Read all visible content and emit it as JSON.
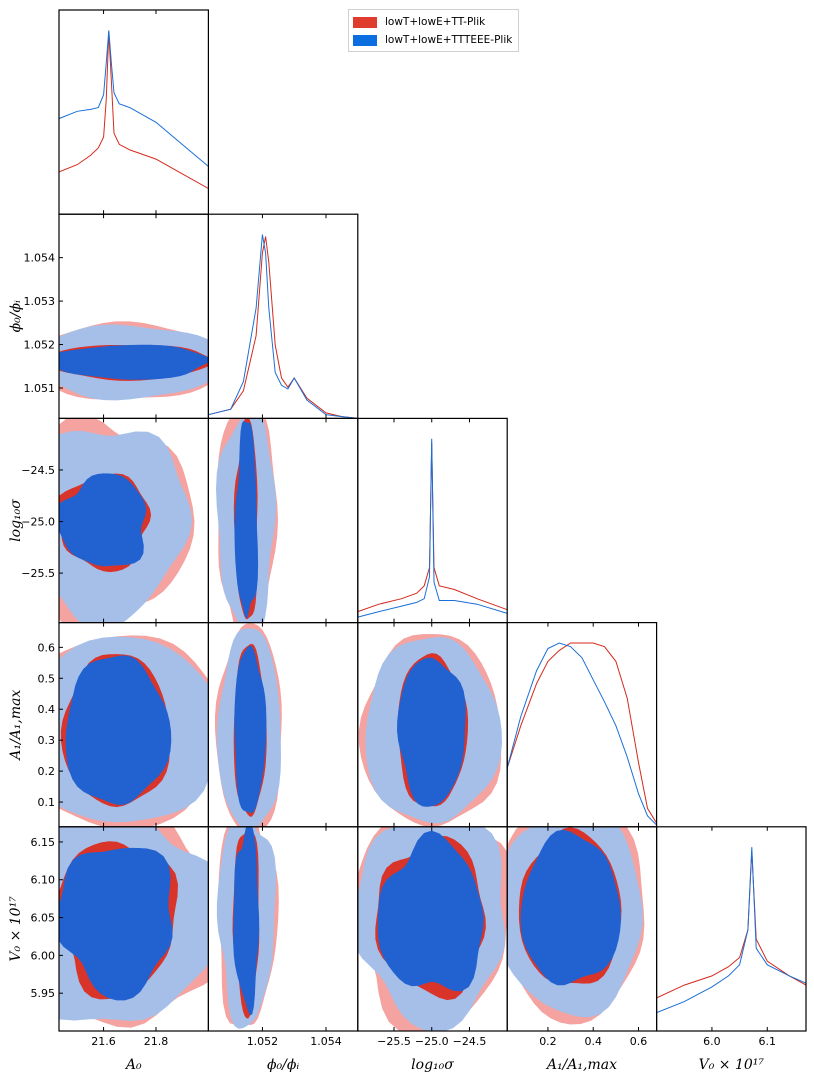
{
  "legend": [
    {
      "label": "lowT+lowE+TT-Plik",
      "color": "#e03c2e"
    },
    {
      "label": "lowT+lowE+TTTEEE-Plik",
      "color": "#0a6ee0"
    }
  ],
  "colors": {
    "red_line": "#d42a1c",
    "blue_line": "#1a6fd6",
    "red_outer": "#f4a3a0",
    "red_inner": "#d9342a",
    "blue_outer": "#a6bfe8",
    "blue_inner": "#2262d0"
  },
  "chart_data": {
    "type": "triangle-corner",
    "parameters": [
      {
        "name": "A_0",
        "label": "A₀",
        "range": [
          21.43,
          22.0
        ],
        "ticks": [
          "21.6",
          "21.8"
        ],
        "tick_values": [
          21.6,
          21.8
        ]
      },
      {
        "name": "phi_0/phi_i",
        "label": "ϕ₀/ϕᵢ",
        "range": [
          1.0503,
          1.055
        ],
        "ticks": [
          "1.052",
          "1.054"
        ],
        "tick_values": [
          1.052,
          1.054
        ],
        "y_ticks": [
          "1.051",
          "1.052",
          "1.053",
          "1.054"
        ],
        "y_tick_values": [
          1.051,
          1.052,
          1.053,
          1.054
        ]
      },
      {
        "name": "log10 sigma",
        "label": "log₁₀σ",
        "range": [
          -25.98,
          -24.0
        ],
        "ticks": [
          "−25.5",
          "−25.0",
          "−24.5"
        ],
        "tick_values": [
          -25.5,
          -25.0,
          -24.5
        ]
      },
      {
        "name": "A_1/A_1,max",
        "label": "A₁/A₁,max",
        "range": [
          0.02,
          0.68
        ],
        "ticks": [
          "0.2",
          "0.4",
          "0.6"
        ],
        "tick_values": [
          0.2,
          0.4,
          0.6
        ],
        "y_ticks": [
          "0.1",
          "0.2",
          "0.3",
          "0.4",
          "0.5",
          "0.6"
        ],
        "y_tick_values": [
          0.1,
          0.2,
          0.3,
          0.4,
          0.5,
          0.6
        ]
      },
      {
        "name": "V_0 x 10^17",
        "label": "V₀ × 10¹⁷",
        "range": [
          5.9,
          6.17
        ],
        "ticks": [
          "6.0",
          "6.1"
        ],
        "tick_values": [
          6.0,
          6.1
        ],
        "y_ticks": [
          "5.95",
          "6.00",
          "6.05",
          "6.10",
          "6.15"
        ],
        "y_tick_values": [
          5.95,
          6.0,
          6.05,
          6.1,
          6.15
        ]
      }
    ],
    "y_axis_labels": [
      "ϕ₀/ϕᵢ",
      "log₁₀σ",
      "A₁/A₁,max",
      "V₀ × 10¹⁷"
    ],
    "log10sigma_y_ticks": [
      "−25.5",
      "−25.0",
      "−24.5"
    ],
    "log10sigma_y_tick_values": [
      -25.5,
      -25.0,
      -24.5
    ],
    "marginals": [
      {
        "param": "A_0",
        "x": [
          21.43,
          21.5,
          21.55,
          21.58,
          21.6,
          21.61,
          21.62,
          21.63,
          21.64,
          21.66,
          21.7,
          21.8,
          21.9,
          22.0
        ],
        "series": [
          {
            "name": "lowT+lowE+TT-Plik",
            "values": [
              0.23,
              0.27,
              0.32,
              0.36,
              0.42,
              0.62,
              0.99,
              0.72,
              0.44,
              0.38,
              0.35,
              0.3,
              0.22,
              0.14
            ]
          },
          {
            "name": "lowT+lowE+TTTEEE-Plik",
            "values": [
              0.52,
              0.56,
              0.57,
              0.58,
              0.65,
              0.82,
              1.0,
              0.82,
              0.66,
              0.6,
              0.58,
              0.5,
              0.38,
              0.26
            ]
          }
        ]
      },
      {
        "param": "phi_0/phi_i",
        "x": [
          1.0503,
          1.051,
          1.0514,
          1.0518,
          1.052,
          1.0521,
          1.0522,
          1.0524,
          1.0526,
          1.0528,
          1.053,
          1.0534,
          1.054,
          1.0545,
          1.055
        ],
        "series": [
          {
            "name": "lowT+lowE+TT-Plik",
            "values": [
              0.02,
              0.05,
              0.15,
              0.45,
              0.9,
              0.99,
              0.85,
              0.4,
              0.22,
              0.17,
              0.22,
              0.11,
              0.03,
              0.01,
              0.0
            ]
          },
          {
            "name": "lowT+lowE+TTTEEE-Plik",
            "values": [
              0.02,
              0.05,
              0.2,
              0.6,
              1.0,
              0.9,
              0.6,
              0.25,
              0.18,
              0.16,
              0.22,
              0.1,
              0.02,
              0.01,
              0.0
            ]
          }
        ]
      },
      {
        "param": "log10 sigma",
        "x": [
          -25.98,
          -25.7,
          -25.4,
          -25.2,
          -25.1,
          -25.03,
          -25.0,
          -24.97,
          -24.9,
          -24.7,
          -24.4,
          -24.0
        ],
        "series": [
          {
            "name": "lowT+lowE+TT-Plik",
            "values": [
              0.06,
              0.1,
              0.13,
              0.16,
              0.2,
              0.3,
              0.98,
              0.3,
              0.2,
              0.18,
              0.13,
              0.07
            ]
          },
          {
            "name": "lowT+lowE+TTTEEE-Plik",
            "values": [
              0.03,
              0.06,
              0.09,
              0.11,
              0.13,
              0.25,
              1.0,
              0.22,
              0.12,
              0.12,
              0.1,
              0.05
            ]
          }
        ]
      },
      {
        "param": "A_1/A_1,max",
        "x": [
          0.02,
          0.08,
          0.15,
          0.2,
          0.25,
          0.3,
          0.35,
          0.4,
          0.45,
          0.5,
          0.55,
          0.6,
          0.64,
          0.68
        ],
        "series": [
          {
            "name": "lowT+lowE+TT-Plik",
            "values": [
              0.32,
              0.55,
              0.78,
              0.9,
              0.96,
              1.0,
              1.0,
              1.0,
              0.98,
              0.9,
              0.7,
              0.35,
              0.1,
              0.02
            ]
          },
          {
            "name": "lowT+lowE+TTTEEE-Plik",
            "values": [
              0.32,
              0.6,
              0.85,
              0.97,
              1.0,
              0.98,
              0.92,
              0.8,
              0.68,
              0.55,
              0.38,
              0.18,
              0.06,
              0.01
            ]
          }
        ]
      },
      {
        "param": "V_0 x 10^17",
        "x": [
          5.9,
          5.95,
          6.0,
          6.03,
          6.05,
          6.065,
          6.072,
          6.08,
          6.1,
          6.14,
          6.17
        ],
        "series": [
          {
            "name": "lowT+lowE+TT-Plik",
            "values": [
              0.18,
              0.25,
              0.3,
              0.35,
              0.4,
              0.55,
              0.98,
              0.5,
              0.38,
              0.3,
              0.25
            ]
          },
          {
            "name": "lowT+lowE+TTTEEE-Plik",
            "values": [
              0.1,
              0.16,
              0.24,
              0.3,
              0.36,
              0.55,
              1.0,
              0.45,
              0.36,
              0.3,
              0.26
            ]
          }
        ]
      }
    ],
    "contours_2d": [
      {
        "row": "phi_0/phi_i",
        "col": "A_0",
        "center": [
          21.7,
          1.0516
        ],
        "sigma68": [
          0.3,
          0.0004
        ],
        "sigma95": [
          0.36,
          0.00085
        ]
      },
      {
        "row": "log10 sigma",
        "col": "A_0",
        "center": [
          21.6,
          -25.0
        ],
        "sigma68": [
          0.17,
          0.45
        ],
        "sigma95": [
          0.32,
          0.95
        ]
      },
      {
        "row": "log10 sigma",
        "col": "phi_0/phi_i",
        "center": [
          1.0515,
          -25.0
        ],
        "sigma68": [
          0.00035,
          0.95
        ],
        "sigma95": [
          0.0009,
          1.1
        ]
      },
      {
        "row": "A_1/A_1,max",
        "col": "A_0",
        "center": [
          21.65,
          0.33
        ],
        "sigma68": [
          0.2,
          0.24
        ],
        "sigma95": [
          0.4,
          0.3
        ]
      },
      {
        "row": "A_1/A_1,max",
        "col": "phi_0/phi_i",
        "center": [
          1.0516,
          0.33
        ],
        "sigma68": [
          0.0005,
          0.27
        ],
        "sigma95": [
          0.001,
          0.33
        ]
      },
      {
        "row": "A_1/A_1,max",
        "col": "log10 sigma",
        "center": [
          -25.0,
          0.33
        ],
        "sigma68": [
          0.45,
          0.24
        ],
        "sigma95": [
          0.9,
          0.3
        ]
      },
      {
        "row": "V_0 x 10^17",
        "col": "A_0",
        "center": [
          21.65,
          6.05
        ],
        "sigma68": [
          0.22,
          0.1
        ],
        "sigma95": [
          0.4,
          0.14
        ]
      },
      {
        "row": "V_0 x 10^17",
        "col": "phi_0/phi_i",
        "center": [
          1.0515,
          6.05
        ],
        "sigma68": [
          0.0004,
          0.12
        ],
        "sigma95": [
          0.0009,
          0.14
        ]
      },
      {
        "row": "V_0 x 10^17",
        "col": "log10 sigma",
        "center": [
          -25.0,
          6.05
        ],
        "sigma68": [
          0.7,
          0.1
        ],
        "sigma95": [
          1.0,
          0.14
        ]
      },
      {
        "row": "V_0 x 10^17",
        "col": "A_1/A_1,max",
        "center": [
          0.3,
          6.06
        ],
        "sigma68": [
          0.22,
          0.1
        ],
        "sigma95": [
          0.32,
          0.14
        ]
      }
    ]
  }
}
